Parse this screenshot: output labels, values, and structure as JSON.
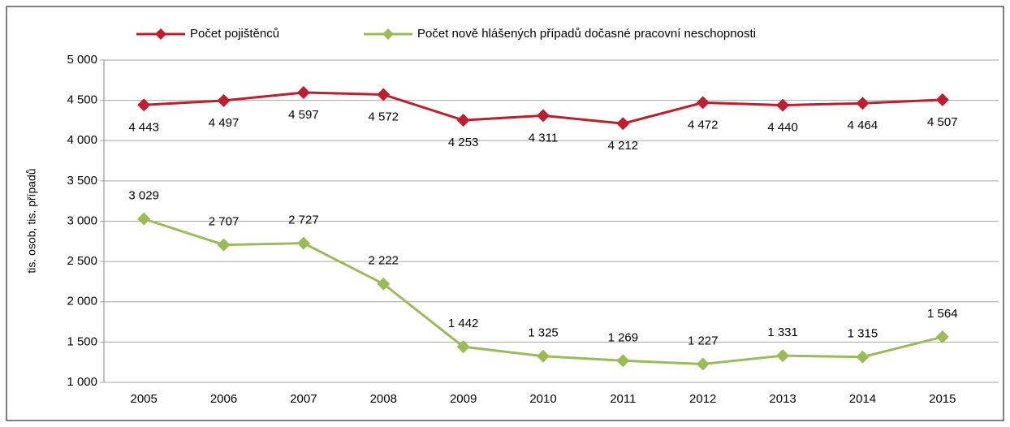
{
  "chart_data": {
    "type": "line",
    "y_label": "tis. osob, tis. případů",
    "categories": [
      "2005",
      "2006",
      "2007",
      "2008",
      "2009",
      "2010",
      "2011",
      "2012",
      "2013",
      "2014",
      "2015"
    ],
    "series": [
      {
        "name": "Počet pojištěnců",
        "color": "#be1e2d",
        "values": [
          4443,
          4497,
          4597,
          4572,
          4253,
          4311,
          4212,
          4472,
          4440,
          4464,
          4507
        ],
        "value_labels": [
          "4 443",
          "4 497",
          "4 597",
          "4 572",
          "4 253",
          "4 311",
          "4 212",
          "4 472",
          "4 440",
          "4 464",
          "4 507"
        ]
      },
      {
        "name": "Počet nově hlášených případů dočasné pracovní neschopnosti",
        "color": "#9bbb59",
        "values": [
          3029,
          2707,
          2727,
          2222,
          1442,
          1325,
          1269,
          1227,
          1331,
          1315,
          1564
        ],
        "value_labels": [
          "3 029",
          "2 707",
          "2 727",
          "2 222",
          "1 442",
          "1 325",
          "1 269",
          "1 227",
          "1 331",
          "1 315",
          "1 564"
        ]
      }
    ],
    "ylim": [
      1000,
      5000
    ],
    "yticks": [
      {
        "value": 1000,
        "label": "1 000"
      },
      {
        "value": 1500,
        "label": "1 500"
      },
      {
        "value": 2000,
        "label": "2 000"
      },
      {
        "value": 2500,
        "label": "2 500"
      },
      {
        "value": 3000,
        "label": "3 000"
      },
      {
        "value": 3500,
        "label": "3 500"
      },
      {
        "value": 4000,
        "label": "4 000"
      },
      {
        "value": 4500,
        "label": "4 500"
      },
      {
        "value": 5000,
        "label": "5 000"
      }
    ],
    "grid": true,
    "legend": "top"
  }
}
